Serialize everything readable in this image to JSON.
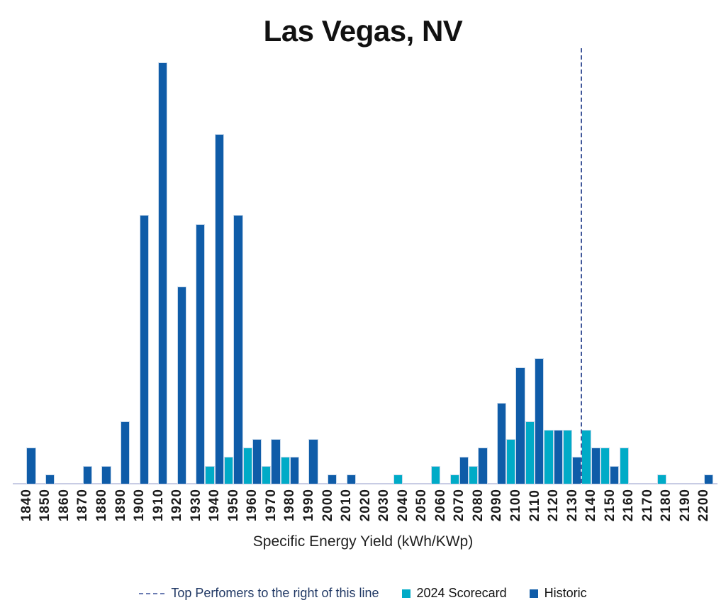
{
  "title": "Las Vegas, NV",
  "x_axis_title": "Specific Energy Yield (kWh/KWp)",
  "legend": {
    "top_performers_label": "Top Perfomers to the right of this line",
    "scorecard_label": "2024 Scorecard",
    "historic_label": "Historic"
  },
  "colors": {
    "historic": "#0F5CA8",
    "scorecard": "#00ABC7",
    "dashed_line": "#3F5699",
    "legend_dash": "#6C7DB3",
    "axis_line": "#C8CCE4",
    "legend_line_text": "#203864",
    "bar_outline": "#C9DAEC"
  },
  "chart_data": {
    "type": "bar",
    "title": "Las Vegas, NV",
    "xlabel": "Specific Energy Yield (kWh/KWp)",
    "ylabel": "",
    "grid": false,
    "y_axis_visible": false,
    "legend_position": "bottom",
    "note": "y-axis unlabeled; bar heights estimated in relative count units from pixel measurement",
    "categories": [
      1840,
      1850,
      1860,
      1870,
      1880,
      1890,
      1900,
      1910,
      1920,
      1930,
      1940,
      1950,
      1960,
      1970,
      1980,
      1990,
      2000,
      2010,
      2020,
      2030,
      2040,
      2050,
      2060,
      2070,
      2080,
      2090,
      2100,
      2110,
      2120,
      2130,
      2140,
      2150,
      2160,
      2170,
      2180,
      2190,
      2200
    ],
    "series": [
      {
        "name": "2024 Scorecard",
        "color": "#00ABC7",
        "values": [
          0,
          0,
          0,
          0,
          0,
          0,
          0,
          0,
          0,
          0,
          2,
          3,
          4,
          2,
          3,
          0,
          0,
          0,
          0,
          0,
          1,
          0,
          2,
          1,
          2,
          0,
          5,
          7,
          6,
          6,
          6,
          4,
          4,
          0,
          1,
          0,
          0
        ]
      },
      {
        "name": "Historic",
        "color": "#0F5CA8",
        "values": [
          4,
          1,
          0,
          2,
          2,
          7,
          30,
          47,
          22,
          29,
          39,
          30,
          5,
          5,
          3,
          5,
          1,
          1,
          0,
          0,
          0,
          0,
          0,
          3,
          4,
          9,
          13,
          14,
          6,
          3,
          4,
          2,
          0,
          0,
          0,
          0,
          1
        ]
      }
    ],
    "annotation_line": {
      "label": "Top Perfomers to the right of this line",
      "style": "dashed-vertical",
      "x_between": [
        2130,
        2140
      ]
    },
    "ylim": [
      0,
      48
    ]
  }
}
